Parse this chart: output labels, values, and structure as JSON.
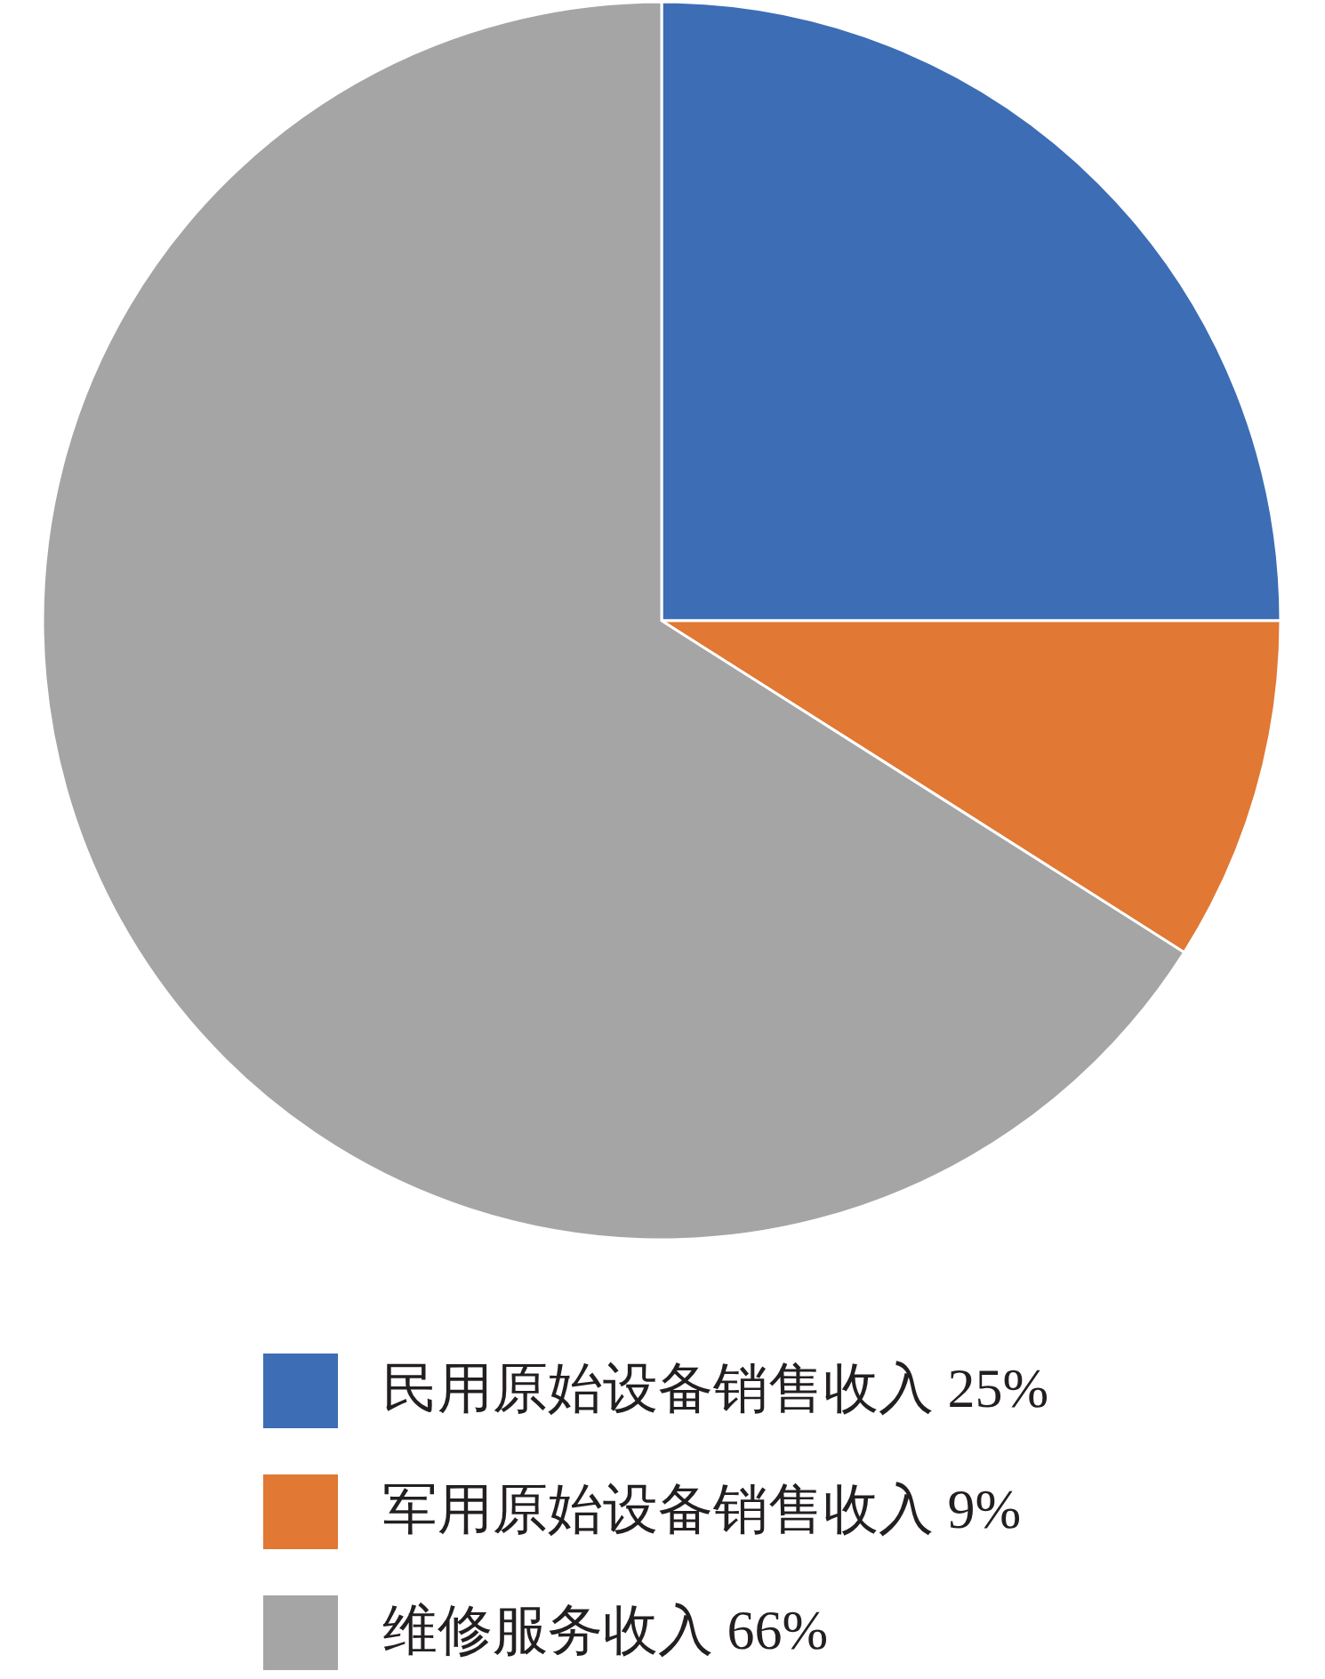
{
  "chart_data": {
    "type": "pie",
    "categories": [
      "民用原始设备销售收入 25%",
      "军用原始设备销售收入 9%",
      "维修服务收入 66%"
    ],
    "values": [
      25,
      9,
      66
    ],
    "colors": [
      "#3d6db5",
      "#e17833",
      "#a5a5a6"
    ],
    "legend": "bottom"
  }
}
